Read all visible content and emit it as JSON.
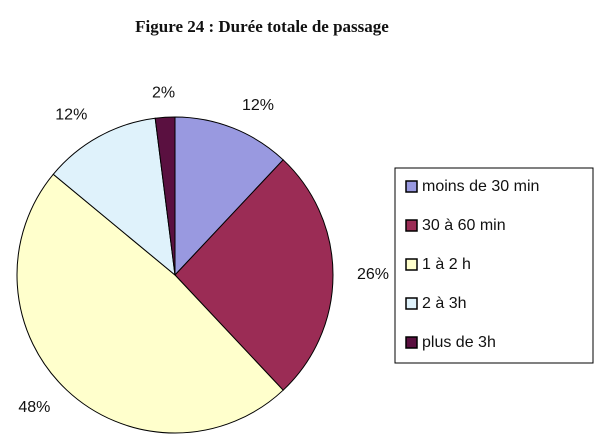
{
  "chart_data": {
    "type": "pie",
    "title": "Figure 24 : Durée totale de passage",
    "categories": [
      "moins de 30 min",
      "30 à 60 min",
      "1 à 2 h",
      "2 à 3h",
      "plus de 3h"
    ],
    "values": [
      12,
      26,
      48,
      12,
      2
    ],
    "value_labels": [
      "12%",
      "26%",
      "48%",
      "12%",
      "2%"
    ],
    "colors": [
      "#9999e0",
      "#9b2c55",
      "#ffffcc",
      "#dff2fb",
      "#5a1040"
    ],
    "legend": "right"
  }
}
